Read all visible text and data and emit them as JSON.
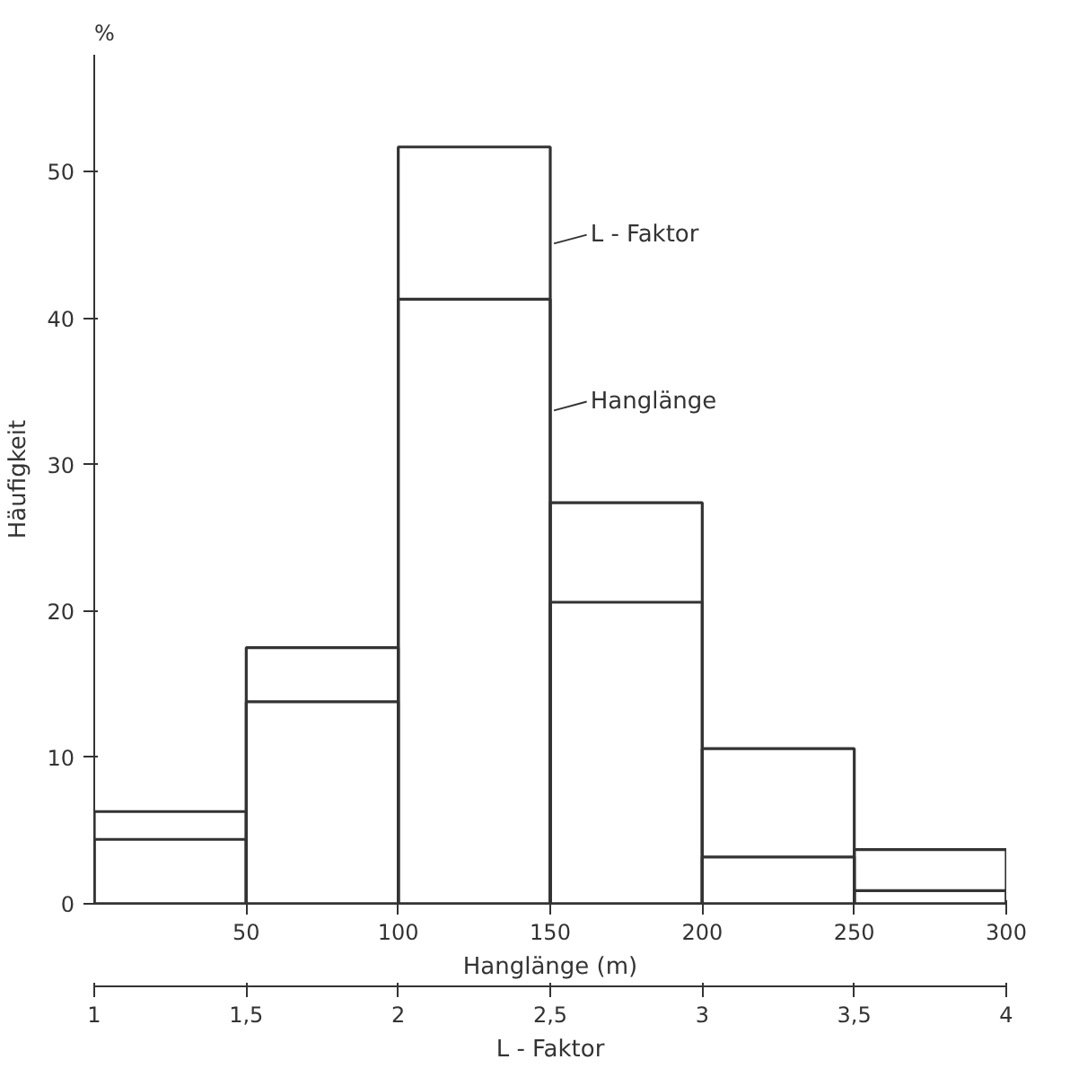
{
  "chart_data": {
    "type": "histogram",
    "xlabel": "L - Faktor",
    "x2label": "Hanglänge (m)",
    "ylabel": "Häufigkeit",
    "annotations": [
      "%"
    ],
    "xlim": [
      1,
      4
    ],
    "xticks": [
      {
        "value": 1,
        "label": "1"
      },
      {
        "value": 1.5,
        "label": "1,5"
      },
      {
        "value": 2,
        "label": "2"
      },
      {
        "value": 2.5,
        "label": "2,5"
      },
      {
        "value": 3,
        "label": "3"
      },
      {
        "value": 3.5,
        "label": "3,5"
      },
      {
        "value": 4,
        "label": "4"
      }
    ],
    "x2lim": [
      0,
      300
    ],
    "x2ticks": [
      50,
      100,
      150,
      200,
      250,
      300
    ],
    "ylim": [
      0,
      58
    ],
    "yticks": [
      0,
      10,
      20,
      30,
      40,
      50
    ],
    "grid": false,
    "legend": "top right",
    "bins": [
      1,
      1.5,
      2,
      2.5,
      3,
      3.5,
      4
    ],
    "series": [
      {
        "name": "L - Faktor",
        "color": "#333333",
        "values": [
          6.3,
          17.5,
          51.7,
          20.6,
          3.2,
          0.9
        ]
      },
      {
        "name": "Hanglänge",
        "color": "#333333",
        "axis": "x2",
        "bins": [
          0,
          50,
          100,
          150,
          200,
          250,
          300
        ],
        "values": [
          4.4,
          13.8,
          41.3,
          27.4,
          10.6,
          3.7
        ]
      }
    ]
  }
}
